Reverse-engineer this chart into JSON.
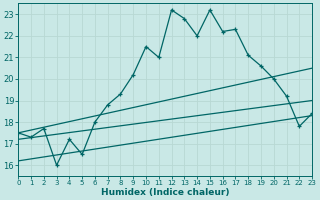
{
  "xlabel": "Humidex (Indice chaleur)",
  "xlim": [
    0,
    23
  ],
  "ylim": [
    15.5,
    23.5
  ],
  "yticks": [
    16,
    17,
    18,
    19,
    20,
    21,
    22,
    23
  ],
  "xticks": [
    0,
    1,
    2,
    3,
    4,
    5,
    6,
    7,
    8,
    9,
    10,
    11,
    12,
    13,
    14,
    15,
    16,
    17,
    18,
    19,
    20,
    21,
    22,
    23
  ],
  "bg_color": "#c9e8e6",
  "line_color": "#006666",
  "grid_color": "#e0f0ee",
  "main_line_x": [
    0,
    1,
    2,
    3,
    4,
    5,
    6,
    7,
    8,
    9,
    10,
    11,
    12,
    13,
    14,
    15,
    16,
    17,
    18,
    19,
    20,
    21,
    22,
    23
  ],
  "main_line_y": [
    17.5,
    17.3,
    17.7,
    16.0,
    17.2,
    16.5,
    18.0,
    18.8,
    19.3,
    20.2,
    21.5,
    21.0,
    23.2,
    22.8,
    22.0,
    23.2,
    22.2,
    22.3,
    21.1,
    20.6,
    20.0,
    19.2,
    17.8,
    18.4
  ],
  "lower_line_x": [
    0,
    23
  ],
  "lower_line_y": [
    16.2,
    18.3
  ],
  "upper_line_x": [
    0,
    23
  ],
  "upper_line_y": [
    17.5,
    20.5
  ],
  "mid_line_x": [
    0,
    23
  ],
  "mid_line_y": [
    17.2,
    19.0
  ]
}
